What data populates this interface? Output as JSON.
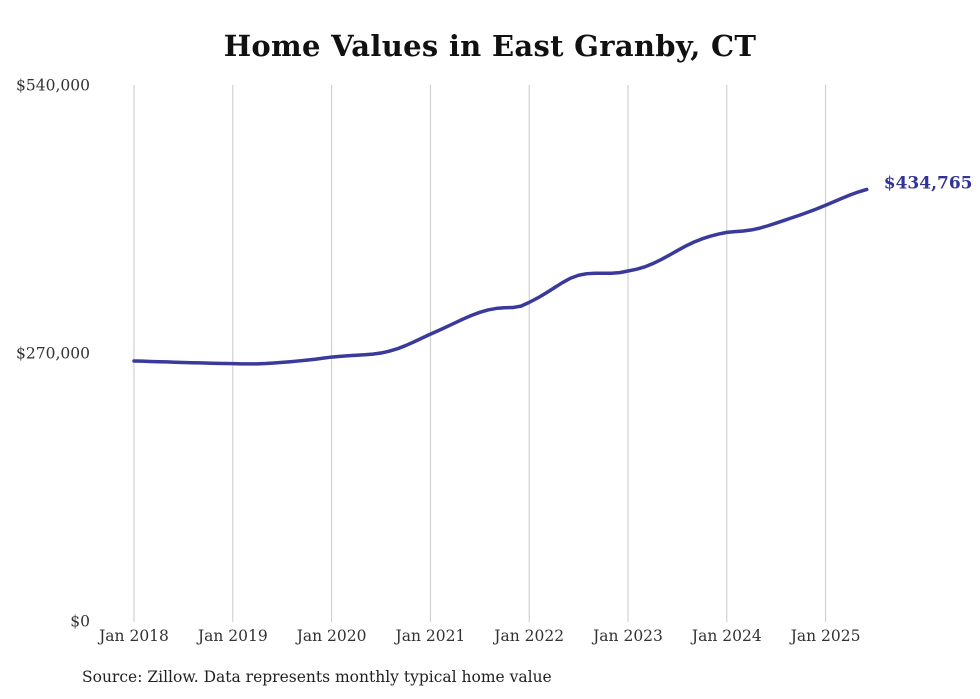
{
  "source_note": "Source: Zillow. Data represents monthly typical home value",
  "colors": {
    "line": "#3a3a9c",
    "annotation": "#32329b",
    "grid": "#c9c9c9",
    "axis_text": "#333333",
    "title_text": "#111111",
    "background": "#ffffff"
  },
  "chart_data": {
    "type": "line",
    "title": "Home Values in East Granby, CT",
    "xlabel": "",
    "ylabel": "",
    "grid": "vertical-only",
    "legend": "none",
    "ylim": [
      0,
      540000
    ],
    "y_ticks": [
      {
        "value": 0,
        "label": "$0"
      },
      {
        "value": 270000,
        "label": "$270,000"
      },
      {
        "value": 540000,
        "label": "$540,000"
      }
    ],
    "x_tick_labels": [
      "Jan 2018",
      "Jan 2019",
      "Jan 2020",
      "Jan 2021",
      "Jan 2022",
      "Jan 2023",
      "Jan 2024",
      "Jan 2025"
    ],
    "frequency": "monthly",
    "x_start": "2018-01",
    "x_end": "2025-06",
    "end_annotation": {
      "text": "$434,765",
      "value": 434765
    },
    "series": [
      {
        "name": "Typical home value",
        "months": [
          "2018-01",
          "2018-02",
          "2018-03",
          "2018-04",
          "2018-05",
          "2018-06",
          "2018-07",
          "2018-08",
          "2018-09",
          "2018-10",
          "2018-11",
          "2018-12",
          "2019-01",
          "2019-02",
          "2019-03",
          "2019-04",
          "2019-05",
          "2019-06",
          "2019-07",
          "2019-08",
          "2019-09",
          "2019-10",
          "2019-11",
          "2019-12",
          "2020-01",
          "2020-02",
          "2020-03",
          "2020-04",
          "2020-05",
          "2020-06",
          "2020-07",
          "2020-08",
          "2020-09",
          "2020-10",
          "2020-11",
          "2020-12",
          "2021-01",
          "2021-02",
          "2021-03",
          "2021-04",
          "2021-05",
          "2021-06",
          "2021-07",
          "2021-08",
          "2021-09",
          "2021-10",
          "2021-11",
          "2021-12",
          "2022-01",
          "2022-02",
          "2022-03",
          "2022-04",
          "2022-05",
          "2022-06",
          "2022-07",
          "2022-08",
          "2022-09",
          "2022-10",
          "2022-11",
          "2022-12",
          "2023-01",
          "2023-02",
          "2023-03",
          "2023-04",
          "2023-05",
          "2023-06",
          "2023-07",
          "2023-08",
          "2023-09",
          "2023-10",
          "2023-11",
          "2023-12",
          "2024-01",
          "2024-02",
          "2024-03",
          "2024-04",
          "2024-05",
          "2024-06",
          "2024-07",
          "2024-08",
          "2024-09",
          "2024-10",
          "2024-11",
          "2024-12",
          "2025-01",
          "2025-02",
          "2025-03",
          "2025-04",
          "2025-05",
          "2025-06"
        ],
        "values": [
          262000,
          261800,
          261500,
          261200,
          261000,
          260700,
          260400,
          260200,
          260000,
          259800,
          259600,
          259400,
          259300,
          259100,
          259000,
          259100,
          259400,
          259900,
          260500,
          261200,
          262000,
          262800,
          263700,
          264800,
          265900,
          266600,
          267200,
          267700,
          268200,
          268900,
          270000,
          271800,
          274300,
          277500,
          281200,
          285100,
          289000,
          292700,
          296500,
          300400,
          304300,
          307900,
          311000,
          313400,
          314900,
          315600,
          315800,
          317200,
          321000,
          325300,
          330200,
          335500,
          340700,
          345300,
          348300,
          349900,
          350400,
          350300,
          350300,
          351000,
          352600,
          354300,
          356700,
          360000,
          364000,
          368500,
          373200,
          377700,
          381700,
          385000,
          387700,
          389800,
          391500,
          392300,
          392900,
          394000,
          395800,
          398200,
          400900,
          403700,
          406500,
          409300,
          412300,
          415500,
          418900,
          422400,
          425900,
          429300,
          432300,
          434765
        ]
      }
    ]
  }
}
